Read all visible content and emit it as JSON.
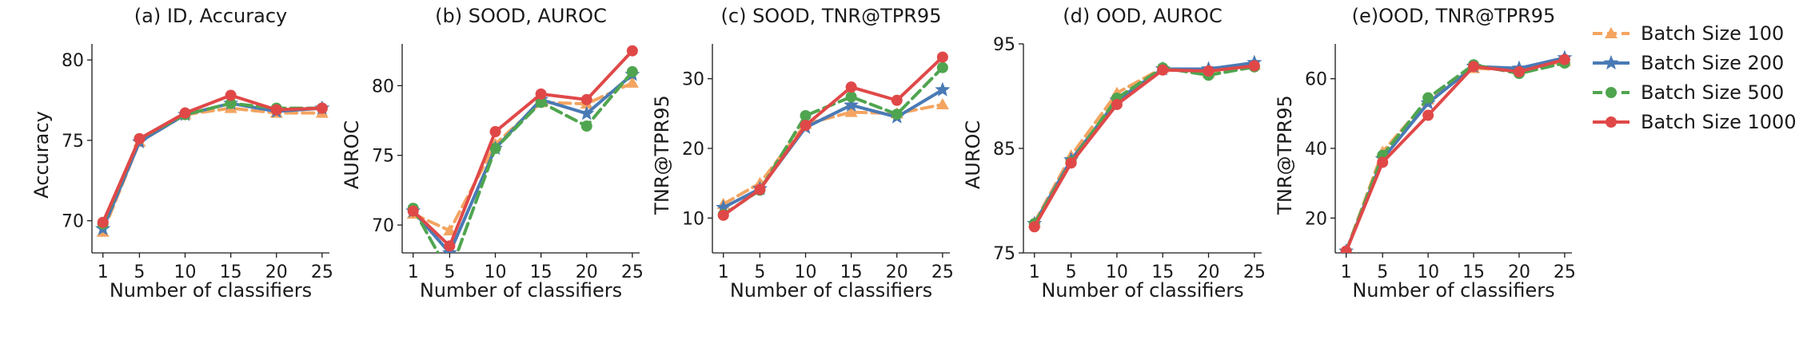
{
  "legend": {
    "placement": "right",
    "entries": [
      {
        "label": "Batch Size 100",
        "color": "#f4a460",
        "marker": "triangle",
        "dash": "dashed"
      },
      {
        "label": "Batch Size 200",
        "color": "#4a7ab5",
        "marker": "star",
        "dash": "solid"
      },
      {
        "label": "Batch Size 500",
        "color": "#4fa54f",
        "marker": "circle",
        "dash": "dashed"
      },
      {
        "label": "Batch Size 1000",
        "color": "#e04848",
        "marker": "circle",
        "dash": "solid"
      }
    ]
  },
  "chart_data": [
    {
      "type": "line",
      "title": "(a) ID, Accuracy",
      "xlabel": "Number of classifiers",
      "ylabel": "Accuracy",
      "x": [
        1,
        5,
        10,
        15,
        20,
        25
      ],
      "xticks": [
        "1",
        "5",
        "10",
        "15",
        "20",
        "25"
      ],
      "ylim": [
        68,
        81
      ],
      "yticks": [
        70,
        75,
        80
      ],
      "grid": false,
      "series": [
        {
          "name": "Batch Size 100",
          "values": [
            69.3,
            74.9,
            76.6,
            77.0,
            76.7,
            76.7
          ]
        },
        {
          "name": "Batch Size 200",
          "values": [
            69.5,
            74.9,
            76.6,
            77.3,
            76.8,
            77.0
          ]
        },
        {
          "name": "Batch Size 500",
          "values": [
            69.8,
            75.1,
            76.6,
            77.3,
            77.0,
            77.0
          ]
        },
        {
          "name": "Batch Size 1000",
          "values": [
            69.9,
            75.1,
            76.7,
            77.8,
            76.9,
            77.0
          ]
        }
      ]
    },
    {
      "type": "line",
      "title": "(b) SOOD, AUROC",
      "xlabel": "Number of classifiers",
      "ylabel": "AUROC",
      "x": [
        1,
        5,
        10,
        15,
        20,
        25
      ],
      "xticks": [
        "1",
        "5",
        "10",
        "15",
        "20",
        "25"
      ],
      "ylim": [
        68,
        83
      ],
      "yticks": [
        70,
        75,
        80
      ],
      "grid": false,
      "series": [
        {
          "name": "Batch Size 100",
          "values": [
            70.8,
            69.6,
            75.8,
            78.8,
            78.7,
            80.2
          ]
        },
        {
          "name": "Batch Size 200",
          "values": [
            71.0,
            68.0,
            75.5,
            79.0,
            78.0,
            80.8
          ]
        },
        {
          "name": "Batch Size 500",
          "values": [
            71.2,
            66.5,
            75.5,
            78.8,
            77.1,
            81.0
          ]
        },
        {
          "name": "Batch Size 1000",
          "values": [
            71.0,
            68.5,
            76.7,
            79.4,
            79.0,
            82.5
          ]
        }
      ]
    },
    {
      "type": "line",
      "title": "(c) SOOD, TNR@TPR95",
      "xlabel": "Number of classifiers",
      "ylabel": "TNR@TPR95",
      "x": [
        1,
        5,
        10,
        15,
        20,
        25
      ],
      "xticks": [
        "1",
        "5",
        "10",
        "15",
        "20",
        "25"
      ],
      "ylim": [
        5,
        35
      ],
      "yticks": [
        10,
        20,
        30
      ],
      "grid": false,
      "series": [
        {
          "name": "Batch Size 100",
          "values": [
            12.0,
            15.0,
            23.5,
            25.2,
            25.0,
            26.3
          ]
        },
        {
          "name": "Batch Size 200",
          "values": [
            11.5,
            14.2,
            23.0,
            26.2,
            24.5,
            28.4
          ]
        },
        {
          "name": "Batch Size 500",
          "values": [
            10.5,
            14.0,
            24.7,
            27.4,
            24.9,
            31.6
          ]
        },
        {
          "name": "Batch Size 1000",
          "values": [
            10.4,
            14.1,
            23.3,
            28.8,
            26.9,
            33.1
          ]
        }
      ]
    },
    {
      "type": "line",
      "title": "(d) OOD, AUROC",
      "xlabel": "Number of classifiers",
      "ylabel": "AUROC",
      "x": [
        1,
        5,
        10,
        15,
        20,
        25
      ],
      "xticks": [
        "1",
        "5",
        "10",
        "15",
        "20",
        "25"
      ],
      "ylim": [
        75,
        95
      ],
      "yticks": [
        75,
        85,
        95
      ],
      "grid": false,
      "series": [
        {
          "name": "Batch Size 100",
          "values": [
            77.9,
            84.3,
            90.3,
            92.7,
            92.2,
            93.0
          ]
        },
        {
          "name": "Batch Size 200",
          "values": [
            77.8,
            83.9,
            89.6,
            92.6,
            92.6,
            93.2
          ]
        },
        {
          "name": "Batch Size 500",
          "values": [
            77.8,
            83.7,
            89.8,
            92.7,
            92.0,
            92.8
          ]
        },
        {
          "name": "Batch Size 1000",
          "values": [
            77.5,
            83.6,
            89.2,
            92.5,
            92.4,
            92.9
          ]
        }
      ]
    },
    {
      "type": "line",
      "title": "(e)OOD, TNR@TPR95",
      "xlabel": "Number of classifiers",
      "ylabel": "TNR@TPR95",
      "x": [
        1,
        5,
        10,
        15,
        20,
        25
      ],
      "xticks": [
        "1",
        "5",
        "10",
        "15",
        "20",
        "25"
      ],
      "ylim": [
        10,
        70
      ],
      "yticks": [
        20,
        40,
        60
      ],
      "grid": false,
      "series": [
        {
          "name": "Batch Size 100",
          "values": [
            10.5,
            39.0,
            54.0,
            63.0,
            62.5,
            65.0
          ]
        },
        {
          "name": "Batch Size 200",
          "values": [
            10.5,
            37.0,
            53.0,
            63.5,
            63.0,
            66.0
          ]
        },
        {
          "name": "Batch Size 500",
          "values": [
            10.5,
            38.0,
            54.5,
            64.0,
            61.5,
            64.5
          ]
        },
        {
          "name": "Batch Size 1000",
          "values": [
            10.5,
            36.0,
            49.5,
            63.5,
            62.0,
            65.5
          ]
        }
      ]
    }
  ]
}
